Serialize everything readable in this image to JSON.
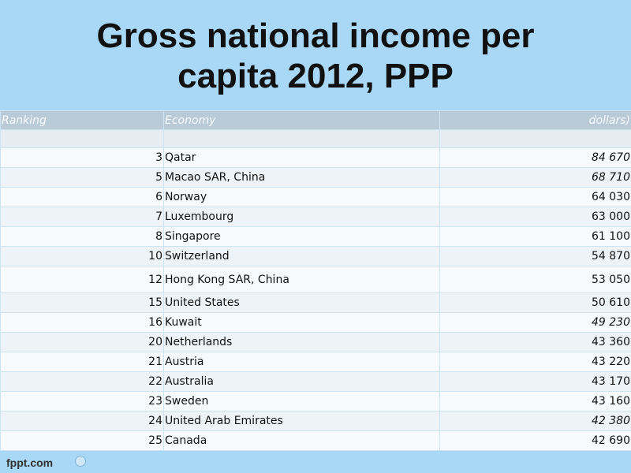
{
  "title": {
    "line1": "Gross national income per",
    "line2": "capita 2012, PPP"
  },
  "table": {
    "headers": [
      "Ranking",
      "Economy",
      "dollars)"
    ],
    "rows": [
      {
        "rank": "3",
        "economy": "Qatar",
        "value": "84 670",
        "italic": true
      },
      {
        "rank": "5",
        "economy": "Macao SAR, China",
        "value": "68 710",
        "italic": true
      },
      {
        "rank": "6",
        "economy": "Norway",
        "value": "64 030",
        "italic": false
      },
      {
        "rank": "7",
        "economy": "Luxembourg",
        "value": "63 000",
        "italic": false
      },
      {
        "rank": "8",
        "economy": "Singapore",
        "value": "61 100",
        "italic": false
      },
      {
        "rank": "10",
        "economy": "Switzerland",
        "value": "54 870",
        "italic": false
      },
      {
        "rank": "12",
        "economy": "Hong Kong SAR, China",
        "value": "53 050",
        "italic": false
      },
      {
        "rank": "15",
        "economy": "United States",
        "value": "50 610",
        "italic": false
      },
      {
        "rank": "16",
        "economy": "Kuwait",
        "value": "49 230",
        "italic": true
      },
      {
        "rank": "20",
        "economy": "Netherlands",
        "value": "43 360",
        "italic": false
      },
      {
        "rank": "21",
        "economy": "Austria",
        "value": "43 220",
        "italic": false
      },
      {
        "rank": "22",
        "economy": "Australia",
        "value": "43 170",
        "italic": false
      },
      {
        "rank": "23",
        "economy": "Sweden",
        "value": "43 160",
        "italic": false
      },
      {
        "rank": "24",
        "economy": "United Arab Emirates",
        "value": "42 380",
        "italic": true
      },
      {
        "rank": "25",
        "economy": "Canada",
        "value": "42 690",
        "italic": false
      }
    ]
  },
  "footer": {
    "logo": "fppt.com"
  }
}
